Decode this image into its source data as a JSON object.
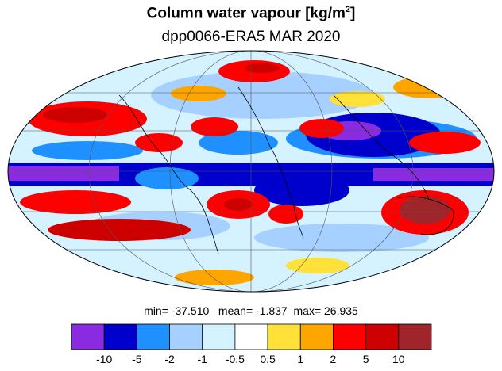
{
  "title": {
    "main": "Column water vapour [kg/m",
    "sup": "2",
    "close": "]"
  },
  "subtitle": "dpp0066-ERA5  MAR 2020",
  "stats": {
    "text": "min= -37.510   mean= -1.837  max= 26.935",
    "min": -37.51,
    "mean": -1.837,
    "max": 26.935
  },
  "legend": {
    "labels": [
      "-10",
      "-5",
      "-2",
      "-1",
      "-0.5",
      "0.5",
      "1",
      "2",
      "5",
      "10"
    ],
    "colors": [
      "#8a2be2",
      "#0000cd",
      "#1e90ff",
      "#a6d0ff",
      "#d4f2ff",
      "#ffffff",
      "#ffe13a",
      "#ffa500",
      "#ff0000",
      "#cd0000",
      "#a0252a"
    ]
  },
  "map": {
    "projection": "Mollweide",
    "ocean_base_color": "#d4f2ff"
  }
}
